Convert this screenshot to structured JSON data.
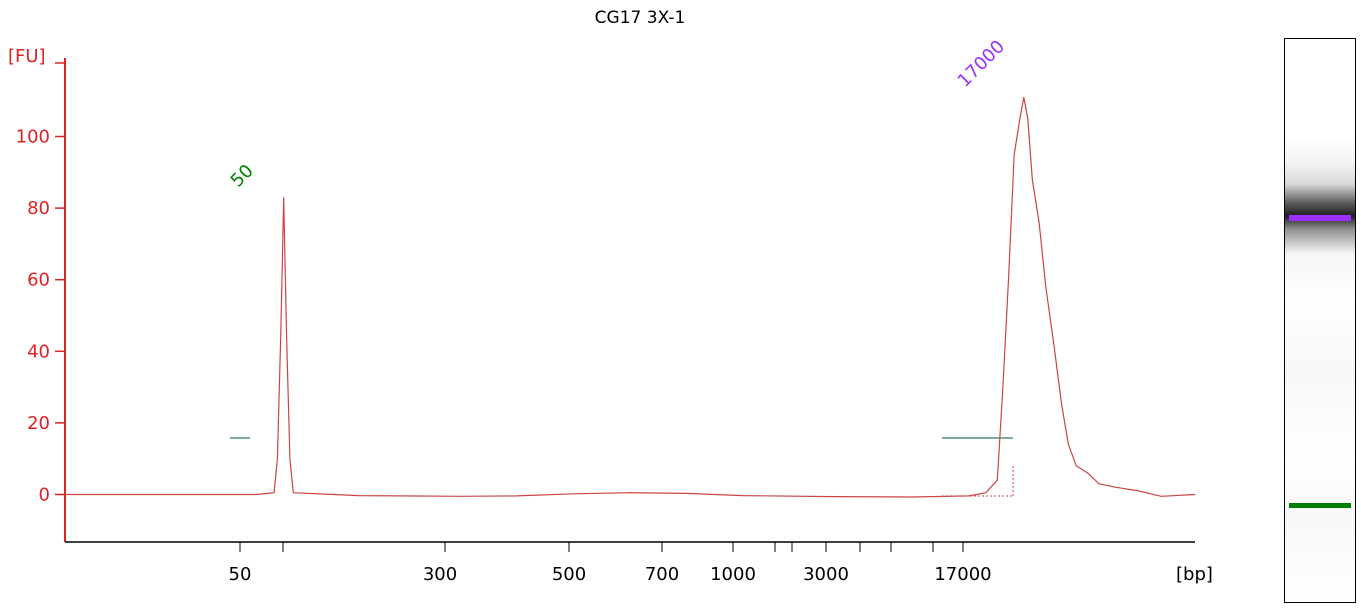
{
  "chart_data": {
    "type": "line",
    "title": "CG17 3X-1",
    "ylabel": "[FU]",
    "xlabel": "[bp]",
    "ylim": [
      -12,
      118
    ],
    "y_ticks": [
      0,
      20,
      40,
      60,
      80,
      100
    ],
    "x_tick_labels": [
      "50",
      "300",
      "500",
      "700",
      "1000",
      "3000",
      "17000"
    ],
    "grid": false,
    "colors": {
      "axis": "#dd2222",
      "trace": "#cc4444",
      "baseline": "#2f7a5a",
      "marker_low": "#008000",
      "marker_high": "#9b30ff"
    },
    "peaks": [
      {
        "label": "50",
        "bp": 50,
        "height": 83,
        "color": "#008000"
      },
      {
        "label": "17000",
        "bp": 17000,
        "height": 111,
        "color": "#9b30ff"
      }
    ],
    "trace": [
      {
        "x": 0.0,
        "y": 0.0
      },
      {
        "x": 0.08,
        "y": 0.0
      },
      {
        "x": 0.17,
        "y": 0.0
      },
      {
        "x": 0.185,
        "y": 0.5
      },
      {
        "x": 0.188,
        "y": 10
      },
      {
        "x": 0.191,
        "y": 45
      },
      {
        "x": 0.1935,
        "y": 83
      },
      {
        "x": 0.196,
        "y": 45
      },
      {
        "x": 0.199,
        "y": 10
      },
      {
        "x": 0.202,
        "y": 0.5
      },
      {
        "x": 0.23,
        "y": 0.1
      },
      {
        "x": 0.26,
        "y": -0.3
      },
      {
        "x": 0.35,
        "y": -0.5
      },
      {
        "x": 0.4,
        "y": -0.4
      },
      {
        "x": 0.45,
        "y": 0.2
      },
      {
        "x": 0.5,
        "y": 0.5
      },
      {
        "x": 0.55,
        "y": 0.3
      },
      {
        "x": 0.6,
        "y": -0.3
      },
      {
        "x": 0.68,
        "y": -0.6
      },
      {
        "x": 0.75,
        "y": -0.7
      },
      {
        "x": 0.8,
        "y": -0.4
      },
      {
        "x": 0.815,
        "y": 0.5
      },
      {
        "x": 0.825,
        "y": 4
      },
      {
        "x": 0.83,
        "y": 30
      },
      {
        "x": 0.835,
        "y": 60
      },
      {
        "x": 0.84,
        "y": 95
      },
      {
        "x": 0.845,
        "y": 105
      },
      {
        "x": 0.8485,
        "y": 111
      },
      {
        "x": 0.852,
        "y": 105
      },
      {
        "x": 0.856,
        "y": 88
      },
      {
        "x": 0.862,
        "y": 76
      },
      {
        "x": 0.868,
        "y": 58
      },
      {
        "x": 0.875,
        "y": 42
      },
      {
        "x": 0.882,
        "y": 25
      },
      {
        "x": 0.888,
        "y": 14
      },
      {
        "x": 0.895,
        "y": 8
      },
      {
        "x": 0.905,
        "y": 6
      },
      {
        "x": 0.915,
        "y": 3
      },
      {
        "x": 0.93,
        "y": 2
      },
      {
        "x": 0.95,
        "y": 1
      },
      {
        "x": 0.97,
        "y": -0.5
      },
      {
        "x": 1.0,
        "y": 0.0
      }
    ]
  },
  "gel_lane": {
    "bands": [
      {
        "name": "high-marker-band",
        "color": "#9b30ff"
      },
      {
        "name": "low-marker-band",
        "color": "#008000"
      }
    ]
  }
}
